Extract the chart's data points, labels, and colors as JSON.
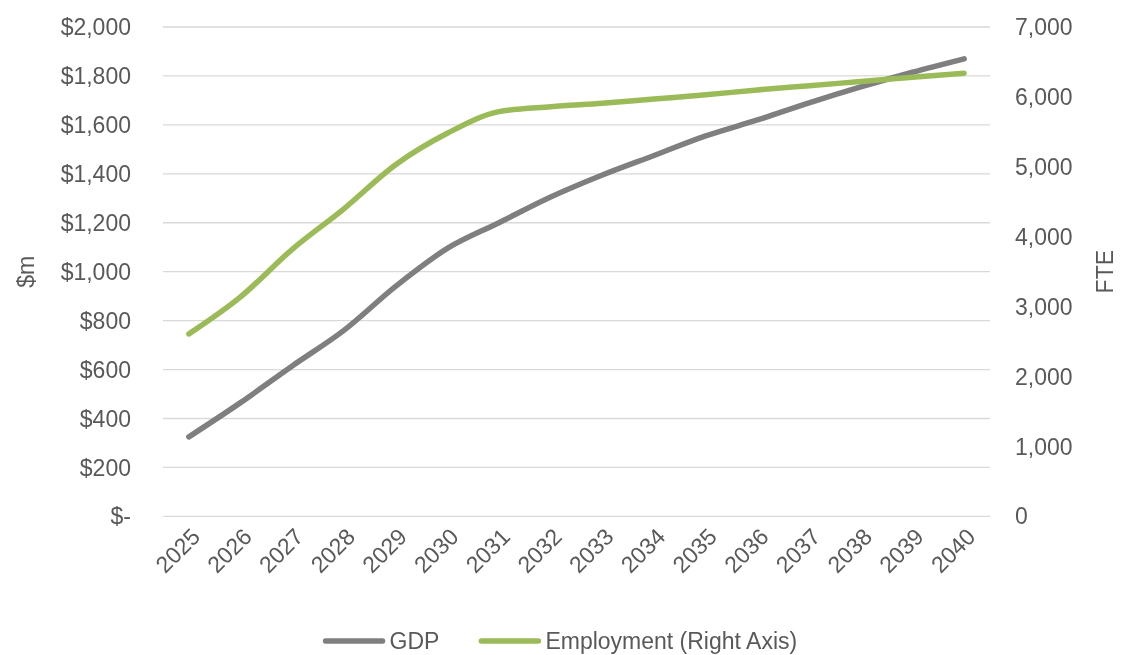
{
  "chart_data": {
    "type": "line",
    "categories": [
      "2025",
      "2026",
      "2027",
      "2028",
      "2029",
      "2030",
      "2031",
      "2032",
      "2033",
      "2034",
      "2035",
      "2036",
      "2037",
      "2038",
      "2039",
      "2040"
    ],
    "ylabel": "$m",
    "y2label": "FTE",
    "ylim": [
      0,
      2000
    ],
    "yticks": [
      {
        "value": 0,
        "label": "$-"
      },
      {
        "value": 200,
        "label": "$200"
      },
      {
        "value": 400,
        "label": "$400"
      },
      {
        "value": 600,
        "label": "$600"
      },
      {
        "value": 800,
        "label": "$800"
      },
      {
        "value": 1000,
        "label": "$1,000"
      },
      {
        "value": 1200,
        "label": "$1,200"
      },
      {
        "value": 1400,
        "label": "$1,400"
      },
      {
        "value": 1600,
        "label": "$1,600"
      },
      {
        "value": 1800,
        "label": "$1,800"
      },
      {
        "value": 2000,
        "label": "$2,000"
      }
    ],
    "y2lim": [
      0,
      7000
    ],
    "y2ticks": [
      0,
      {
        "value": 1000,
        "label": "1,000"
      },
      {
        "value": 2000,
        "label": "2,000"
      },
      {
        "value": 3000,
        "label": "3,000"
      },
      {
        "value": 4000,
        "label": "4,000"
      },
      {
        "value": 5000,
        "label": "5,000"
      },
      {
        "value": 6000,
        "label": "6,000"
      },
      {
        "value": 7000,
        "label": "7,000"
      }
    ],
    "grid": "y",
    "legend": "bottom",
    "series": [
      {
        "name": "GDP",
        "color": "#7f7f7f",
        "values": [
          325,
          465,
          615,
          760,
          940,
          1095,
          1200,
          1305,
          1395,
          1475,
          1555,
          1620,
          1690,
          1755,
          1815,
          1870
        ]
      },
      {
        "name": "Employment (Right Axis)",
        "color": "#9bbb59",
        "axis": "y2",
        "values": [
          2610,
          3140,
          3820,
          4400,
          5030,
          5480,
          5790,
          5860,
          5910,
          5970,
          6030,
          6100,
          6160,
          6220,
          6280,
          6340
        ]
      }
    ]
  }
}
